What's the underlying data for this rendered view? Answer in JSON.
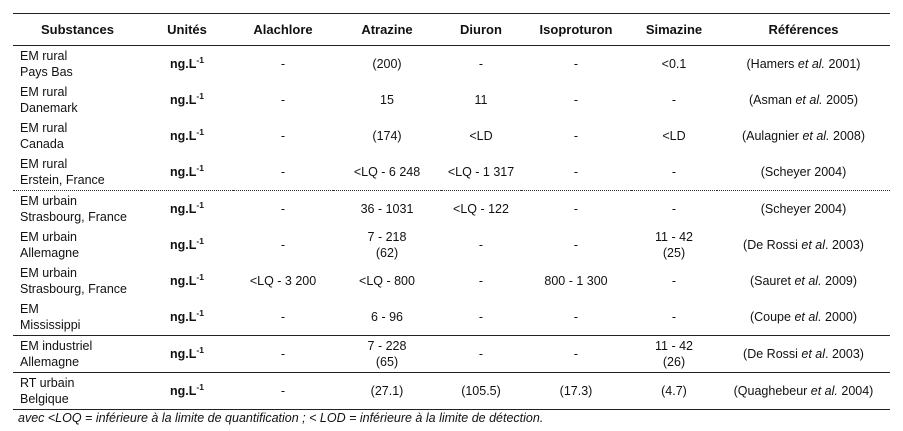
{
  "columns": [
    "Substances",
    "Unités",
    "Alachlore",
    "Atrazine",
    "Diuron",
    "Isoproturon",
    "Simazine",
    "Références"
  ],
  "rows": [
    {
      "sub1": "EM rural",
      "sub2": "Pays Bas",
      "unit": "ng.L",
      "unit_exp": "-1",
      "alachlore": "-",
      "atrazine": "(200)",
      "atrazine2": "",
      "diuron": "-",
      "isoproturon": "-",
      "simazine": "<0.1",
      "simazine2": "",
      "ref_a": "(Hamers ",
      "ref_et": "et al.",
      "ref_b": " 2001)",
      "sep": "none"
    },
    {
      "sub1": "EM rural",
      "sub2": "Danemark",
      "unit": "ng.L",
      "unit_exp": "-1",
      "alachlore": "-",
      "atrazine": "15",
      "atrazine2": "",
      "diuron": "11",
      "isoproturon": "-",
      "simazine": "-",
      "simazine2": "",
      "ref_a": "(Asman ",
      "ref_et": "et al.",
      "ref_b": " 2005)",
      "sep": "none"
    },
    {
      "sub1": "EM rural",
      "sub2": "Canada",
      "unit": "ng.L",
      "unit_exp": "-1",
      "alachlore": "-",
      "atrazine": "(174)",
      "atrazine2": "",
      "diuron": "<LD",
      "isoproturon": "-",
      "simazine": "<LD",
      "simazine2": "",
      "ref_a": "(Aulagnier ",
      "ref_et": "et al.",
      "ref_b": " 2008)",
      "sep": "none"
    },
    {
      "sub1": "EM rural",
      "sub2": "Erstein, France",
      "unit": "ng.L",
      "unit_exp": "-1",
      "alachlore": "-",
      "atrazine": "<LQ - 6 248",
      "atrazine2": "",
      "diuron": "<LQ - 1 317",
      "isoproturon": "-",
      "simazine": "-",
      "simazine2": "",
      "ref_a": "(Scheyer 2004)",
      "ref_et": "",
      "ref_b": "",
      "sep": "dot"
    },
    {
      "sub1": "EM urbain",
      "sub2": "Strasbourg, France",
      "unit": "ng.L",
      "unit_exp": "-1",
      "alachlore": "-",
      "atrazine": "36 - 1031",
      "atrazine2": "",
      "diuron": "<LQ - 122",
      "isoproturon": "-",
      "simazine": "-",
      "simazine2": "",
      "ref_a": "(Scheyer 2004)",
      "ref_et": "",
      "ref_b": "",
      "sep": "none"
    },
    {
      "sub1": "EM urbain",
      "sub2": "Allemagne",
      "unit": "ng.L",
      "unit_exp": "-1",
      "alachlore": "-",
      "atrazine": "7 - 218",
      "atrazine2": "(62)",
      "diuron": "-",
      "isoproturon": "-",
      "simazine": "11 - 42",
      "simazine2": "(25)",
      "ref_a": "(De Rossi ",
      "ref_et": "et al",
      "ref_b": ". 2003)",
      "sep": "none"
    },
    {
      "sub1": "EM urbain",
      "sub2": "Strasbourg, France",
      "unit": "ng.L",
      "unit_exp": "-1",
      "alachlore": "<LQ - 3 200",
      "atrazine": "<LQ - 800",
      "atrazine2": "",
      "diuron": "-",
      "isoproturon": "800 - 1 300",
      "simazine": "-",
      "simazine2": "",
      "ref_a": "(Sauret ",
      "ref_et": "et al.",
      "ref_b": " 2009)",
      "sep": "none"
    },
    {
      "sub1": "EM",
      "sub2": "Mississippi",
      "unit": "ng.L",
      "unit_exp": "-1",
      "alachlore": "-",
      "atrazine": "6 - 96",
      "atrazine2": "",
      "diuron": "-",
      "isoproturon": "-",
      "simazine": "-",
      "simazine2": "",
      "ref_a": "(Coupe ",
      "ref_et": "et al.",
      "ref_b": " 2000)",
      "sep": "solid"
    },
    {
      "sub1": "EM industriel",
      "sub2": "Allemagne",
      "unit": "ng.L",
      "unit_exp": "-1",
      "alachlore": "-",
      "atrazine": "7 - 228",
      "atrazine2": "(65)",
      "diuron": "-",
      "isoproturon": "-",
      "simazine": "11 -  42",
      "simazine2": "(26)",
      "ref_a": "(De Rossi ",
      "ref_et": "et al",
      "ref_b": ". 2003)",
      "sep": "solid"
    },
    {
      "sub1": "RT urbain",
      "sub2": "Belgique",
      "unit": "ng.L",
      "unit_exp": "-1",
      "alachlore": "-",
      "atrazine": "(27.1)",
      "atrazine2": "",
      "diuron": "(105.5)",
      "isoproturon": "(17.3)",
      "simazine": "(4.7)",
      "simazine2": "",
      "ref_a": "(Quaghebeur ",
      "ref_et": "et al.",
      "ref_b": " 2004)",
      "sep": "last"
    }
  ],
  "note": "avec <LOQ = inférieure à la limite de quantification ; < LOD = inférieure à la limite de détection."
}
